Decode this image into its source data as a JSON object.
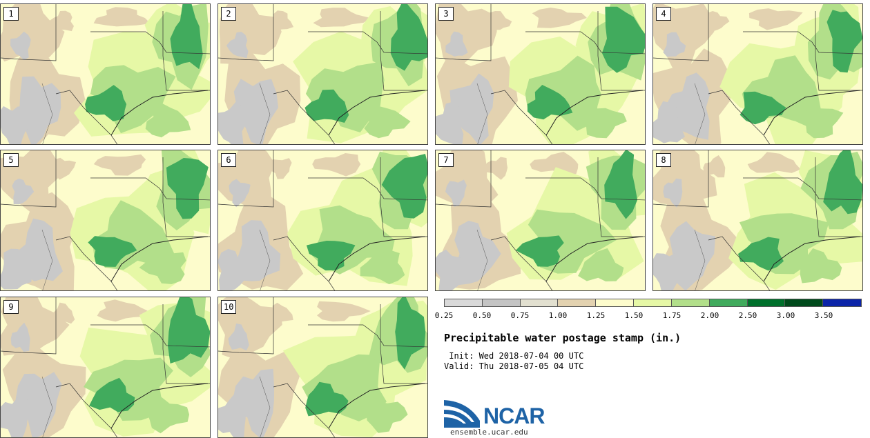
{
  "panels": [
    {
      "label": "1"
    },
    {
      "label": "2"
    },
    {
      "label": "3"
    },
    {
      "label": "4"
    },
    {
      "label": "5"
    },
    {
      "label": "6"
    },
    {
      "label": "7"
    },
    {
      "label": "8"
    },
    {
      "label": "9"
    },
    {
      "label": "10"
    }
  ],
  "colorbar": {
    "colors": [
      "#d9d9d9",
      "#c4c4c4",
      "#e2e0d0",
      "#e3d2b0",
      "#fdfccc",
      "#e6f8a6",
      "#b2df8a",
      "#41ab5d",
      "#00702b",
      "#004a1b",
      "#0b24a8"
    ],
    "ticks": [
      "0.25",
      "0.50",
      "0.75",
      "1.00",
      "1.25",
      "1.50",
      "1.75",
      "2.00",
      "2.50",
      "3.00",
      "3.50"
    ]
  },
  "title": "Precipitable water postage stamp (in.)",
  "init": " Init: Wed 2018-07-04 00 UTC",
  "valid": "Valid: Thu 2018-07-05 04 UTC",
  "logo": {
    "text": "NCAR",
    "site": "ensemble.ucar.edu",
    "color": "#1e63a6"
  }
}
